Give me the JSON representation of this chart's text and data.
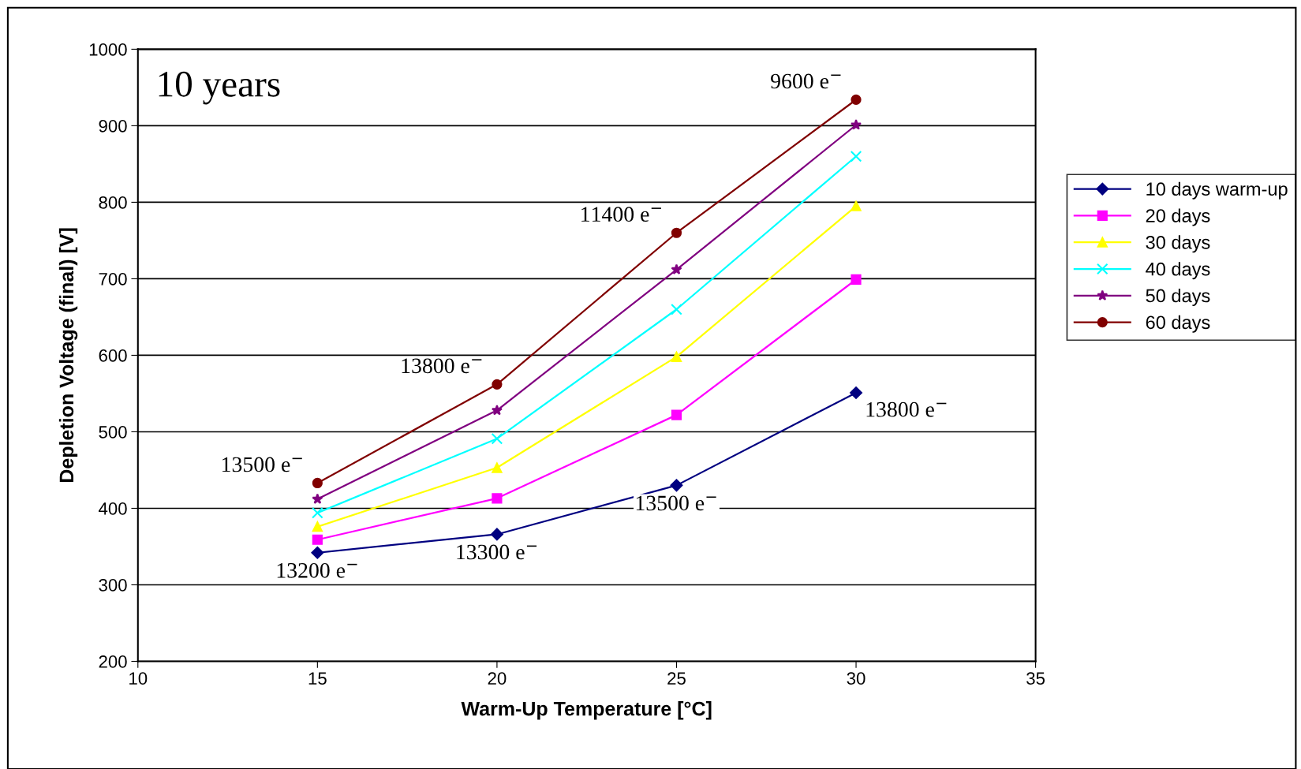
{
  "chart_data": {
    "type": "line",
    "xlabel": "Warm-Up Temperature [°C]",
    "ylabel": "Depletion Voltage (final) [V]",
    "x": [
      15,
      20,
      25,
      30
    ],
    "series": [
      {
        "name": "10 days warm-up",
        "color": "#000080",
        "marker": "diamond",
        "values": [
          342,
          366,
          430,
          551
        ]
      },
      {
        "name": "20 days",
        "color": "#ff00ff",
        "marker": "square",
        "values": [
          359,
          413,
          522,
          699
        ]
      },
      {
        "name": "30 days",
        "color": "#ffff00",
        "marker": "triangle",
        "values": [
          376,
          453,
          598,
          795
        ]
      },
      {
        "name": "40 days",
        "color": "#00ffff",
        "marker": "cross",
        "values": [
          394,
          491,
          660,
          860
        ]
      },
      {
        "name": "50 days",
        "color": "#800080",
        "marker": "star",
        "values": [
          412,
          528,
          712,
          901
        ]
      },
      {
        "name": "60 days",
        "color": "#800000",
        "marker": "circle",
        "values": [
          433,
          562,
          760,
          934
        ]
      }
    ],
    "xlim": [
      10,
      35
    ],
    "xticks": [
      10,
      15,
      20,
      25,
      30,
      35
    ],
    "ylim": [
      200,
      1000
    ],
    "yticks": [
      200,
      300,
      400,
      500,
      600,
      700,
      800,
      900,
      1000
    ],
    "grid": "y",
    "legend": "right",
    "line_style": "solid",
    "annotations": [
      "10 years",
      {
        "text": "13200 e$^{−}$",
        "x": 15,
        "y": 342
      },
      {
        "text": "13300 e$^{−}$",
        "x": 20,
        "y": 366
      },
      {
        "text": "13500 e$^{−}$",
        "x": 25,
        "y": 430
      },
      {
        "text": "13800 e$^{−}$",
        "x": 30,
        "y": 551
      },
      {
        "text": "13500 e$^{−}$",
        "x": 15,
        "y": 433
      },
      {
        "text": "13800 e$^{−}$",
        "x": 20,
        "y": 562
      },
      {
        "text": "11400 e$^{−}$",
        "x": 25,
        "y": 760
      },
      {
        "text": "9600 e$^{−}$",
        "x": 30,
        "y": 934
      }
    ]
  }
}
